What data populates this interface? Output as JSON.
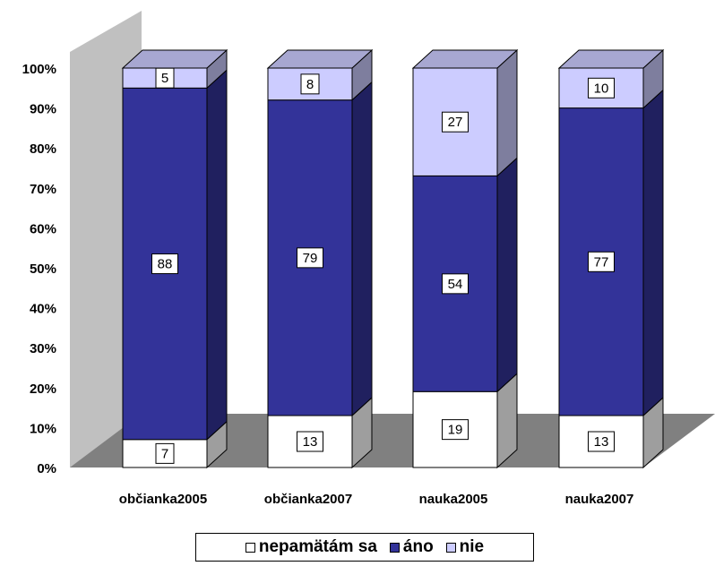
{
  "chart_data": {
    "type": "bar",
    "stacked": "percent",
    "style": "3d-column",
    "categories": [
      "občianka2005",
      "občianka2007",
      "nauka2005",
      "nauka2007"
    ],
    "series": [
      {
        "name": "nepamätám sa",
        "color": "#ffffff",
        "values": [
          7,
          13,
          19,
          13
        ]
      },
      {
        "name": "áno",
        "color": "#333399",
        "values": [
          88,
          79,
          54,
          77
        ]
      },
      {
        "name": "nie",
        "color": "#ccccff",
        "values": [
          5,
          8,
          27,
          10
        ]
      }
    ],
    "y_ticks": [
      "0%",
      "10%",
      "20%",
      "30%",
      "40%",
      "50%",
      "60%",
      "70%",
      "80%",
      "90%",
      "100%"
    ],
    "ylim": [
      0,
      100
    ],
    "wall_color": "#c0c0c0",
    "floor_color": "#808080",
    "legend_position": "bottom"
  }
}
